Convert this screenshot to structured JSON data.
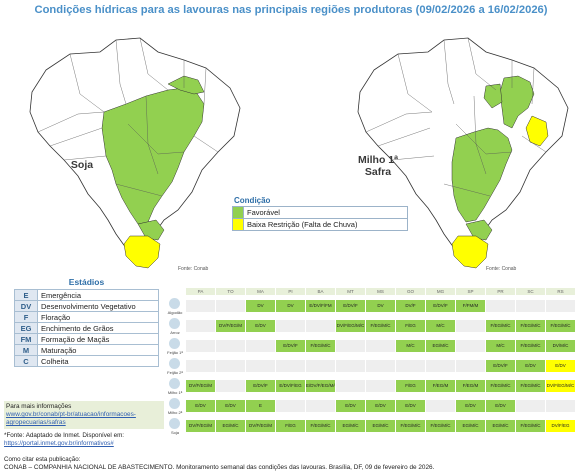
{
  "title": "Condições hídricas para as lavouras nas principais regiões produtoras (09/02/2026 a 16/02/2026)",
  "maps": {
    "left_label": "Soja",
    "right_label_line1": "Milho 1ª",
    "right_label_line2": "Safra",
    "fonte": "Fonte: Conab",
    "colors": {
      "favoravel": "#92d050",
      "baixa": "#ffff00",
      "outline": "#333333",
      "land": "#ffffff"
    }
  },
  "legend_condicao": {
    "heading": "Condição",
    "items": [
      {
        "color": "#92d050",
        "label": "Favorável"
      },
      {
        "color": "#ffff00",
        "label": "Baixa Restrição (Falta de Chuva)"
      }
    ]
  },
  "estadios": {
    "heading": "Estádios",
    "items": [
      {
        "code": "E",
        "label": "Emergência"
      },
      {
        "code": "DV",
        "label": "Desenvolvimento Vegetativo"
      },
      {
        "code": "F",
        "label": "Floração"
      },
      {
        "code": "EG",
        "label": "Enchimento de Grãos"
      },
      {
        "code": "FM",
        "label": "Formação de Maçãs"
      },
      {
        "code": "M",
        "label": "Maturação"
      },
      {
        "code": "C",
        "label": "Colheita"
      }
    ]
  },
  "info": {
    "line1": "Para mais informações",
    "link": "www.gov.br/conab/pt-br/atuacao/informacoes-agropecuarias/safras"
  },
  "note": {
    "text": "*Fonte: Adaptado de Inmet. Disponível em:",
    "link": "https://portal.inmet.gov.br/informativos#"
  },
  "citation": {
    "line1": "Como citar esta publicação:",
    "line2": "CONAB – COMPANHIA NACIONAL DE ABASTECIMENTO. Monitoramento semanal das condições das lavouras. Brasília, DF, 09 de fevereiro de 2026."
  },
  "table": {
    "states": [
      "PA",
      "TO",
      "MA",
      "PI",
      "BA",
      "MT",
      "MS",
      "GO",
      "MG",
      "SP",
      "PR",
      "SC",
      "RS"
    ],
    "rows": [
      {
        "crop": "Algodão",
        "cells": [
          [
            "",
            ""
          ],
          [
            "",
            ""
          ],
          [
            "DV",
            "g"
          ],
          [
            "DV",
            "g"
          ],
          [
            "E/DV/F/FM",
            "g"
          ],
          [
            "E/DV/F",
            "g"
          ],
          [
            "DV",
            "g"
          ],
          [
            "DV/F",
            "g"
          ],
          [
            "E/DV/F",
            "g"
          ],
          [
            "F/FM/M",
            "g"
          ],
          [
            "",
            ""
          ],
          [
            "",
            ""
          ],
          [
            "",
            ""
          ]
        ]
      },
      {
        "crop": "Arroz",
        "cells": [
          [
            "",
            ""
          ],
          [
            "DV/F/EG/M",
            "g"
          ],
          [
            "E/DV",
            "g"
          ],
          [
            "",
            ""
          ],
          [
            "",
            ""
          ],
          [
            "DV/F/EG/M/C",
            "g"
          ],
          [
            "F/EG/M/C",
            "g"
          ],
          [
            "F/EG",
            "g"
          ],
          [
            "M/C",
            "g"
          ],
          [
            "",
            ""
          ],
          [
            "F/EG/M/C",
            "g"
          ],
          [
            "F/EG/M/C",
            "g"
          ],
          [
            "F/EG/M/C",
            "g"
          ]
        ]
      },
      {
        "crop": "Feijão 1ª",
        "cells": [
          [
            "",
            ""
          ],
          [
            "",
            ""
          ],
          [
            "",
            ""
          ],
          [
            "E/DV/F",
            "g"
          ],
          [
            "F/EG/M/C",
            "g"
          ],
          [
            "",
            ""
          ],
          [
            "",
            ""
          ],
          [
            "M/C",
            "g"
          ],
          [
            "EG/M/C",
            "g"
          ],
          [
            "",
            ""
          ],
          [
            "M/C",
            "g"
          ],
          [
            "F/EG/M/C",
            "g"
          ],
          [
            "DV/M/C",
            "g"
          ]
        ]
      },
      {
        "crop": "Feijão 2ª",
        "cells": [
          [
            "",
            ""
          ],
          [
            "",
            ""
          ],
          [
            "",
            ""
          ],
          [
            "",
            ""
          ],
          [
            "",
            ""
          ],
          [
            "",
            ""
          ],
          [
            "",
            ""
          ],
          [
            "",
            ""
          ],
          [
            "",
            ""
          ],
          [
            "",
            ""
          ],
          [
            "E/DV/F",
            "g"
          ],
          [
            "E/DV",
            "g"
          ],
          [
            "E/DV",
            "y"
          ]
        ]
      },
      {
        "crop": "Milho 1ª",
        "cells": [
          [
            "DV/F/EG/M",
            "g"
          ],
          [
            "",
            ""
          ],
          [
            "E/DV/F",
            "g"
          ],
          [
            "E/DV/F/EG",
            "g"
          ],
          [
            "E/DV/F/EG/M/C",
            "g"
          ],
          [
            "",
            ""
          ],
          [
            "",
            ""
          ],
          [
            "F/EG",
            "g"
          ],
          [
            "F/EG/M",
            "g"
          ],
          [
            "F/EG/M",
            "g"
          ],
          [
            "F/EG/M/C",
            "g"
          ],
          [
            "F/EG/M/C",
            "g"
          ],
          [
            "DV/F/EG/M/C",
            "y"
          ]
        ]
      },
      {
        "crop": "Milho 2ª",
        "cells": [
          [
            "E/DV",
            "g"
          ],
          [
            "E/DV",
            "g"
          ],
          [
            "E",
            "g"
          ],
          [
            "",
            ""
          ],
          [
            "",
            ""
          ],
          [
            "E/DV",
            "g"
          ],
          [
            "E/DV",
            "g"
          ],
          [
            "E/DV",
            "g"
          ],
          [
            "",
            ""
          ],
          [
            "E/DV",
            "g"
          ],
          [
            "E/DV",
            "g"
          ],
          [
            "",
            ""
          ],
          [
            "",
            ""
          ]
        ]
      },
      {
        "crop": "Soja",
        "cells": [
          [
            "DV/F/EG/M",
            "g"
          ],
          [
            "EG/M/C",
            "g"
          ],
          [
            "DV/F/EG/M",
            "g"
          ],
          [
            "F/EG",
            "g"
          ],
          [
            "F/EG/M/C",
            "g"
          ],
          [
            "EG/M/C",
            "g"
          ],
          [
            "EG/M/C",
            "g"
          ],
          [
            "F/EG/M/C",
            "g"
          ],
          [
            "F/EG/M/C",
            "g"
          ],
          [
            "EG/M/C",
            "g"
          ],
          [
            "EG/M/C",
            "g"
          ],
          [
            "F/EG/M/C",
            "g"
          ],
          [
            "DV/F/EG",
            "y"
          ]
        ]
      }
    ]
  }
}
